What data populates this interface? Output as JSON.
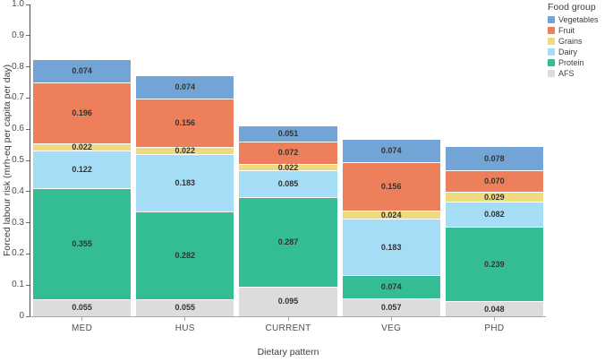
{
  "figure": {
    "ylabel": "Forced labour risk (mrh-eq per capita per day)",
    "xlabel": "Dietary pattern",
    "legend_title": "Food group"
  },
  "chart_data": {
    "type": "bar",
    "stacked": true,
    "title": "",
    "xlabel": "Dietary pattern",
    "ylabel": "Forced labour risk (mrh-eq per capita per day)",
    "ylim": [
      0,
      1.0
    ],
    "ytick_step": 0.1,
    "ytick_labels": [
      "0",
      "0.1",
      "0.2",
      "0.3",
      "0.4",
      "0.5",
      "0.6",
      "0.7",
      "0.8",
      "0.9",
      "1.0"
    ],
    "grid": false,
    "legend_position": "top-right",
    "legend_title": "Food group",
    "legend_order_top_to_bottom": [
      "Vegetables",
      "Fruit",
      "Grains",
      "Dairy",
      "Protein",
      "AFS"
    ],
    "categories": [
      "MED",
      "HUS",
      "CURRENT",
      "VEG",
      "PHD"
    ],
    "stack_order_bottom_to_top": [
      "AFS",
      "Protein",
      "Dairy",
      "Grains",
      "Fruit",
      "Vegetables"
    ],
    "series": [
      {
        "name": "AFS",
        "color": "#dcdcdc",
        "values": [
          0.055,
          0.055,
          0.095,
          0.057,
          0.048
        ]
      },
      {
        "name": "Protein",
        "color": "#34bd94",
        "values": [
          0.355,
          0.282,
          0.287,
          0.074,
          0.239
        ]
      },
      {
        "name": "Dairy",
        "color": "#a4ddf5",
        "values": [
          0.122,
          0.183,
          0.085,
          0.183,
          0.082
        ]
      },
      {
        "name": "Grains",
        "color": "#eedb7f",
        "values": [
          0.022,
          0.022,
          0.022,
          0.024,
          0.029
        ]
      },
      {
        "name": "Fruit",
        "color": "#ed7f5b",
        "values": [
          0.196,
          0.156,
          0.072,
          0.156,
          0.07
        ]
      },
      {
        "name": "Vegetables",
        "color": "#73a4d6",
        "values": [
          0.074,
          0.074,
          0.051,
          0.074,
          0.078
        ]
      }
    ],
    "totals": [
      0.824,
      0.772,
      0.612,
      0.568,
      0.546
    ],
    "value_label_decimals": 3
  }
}
